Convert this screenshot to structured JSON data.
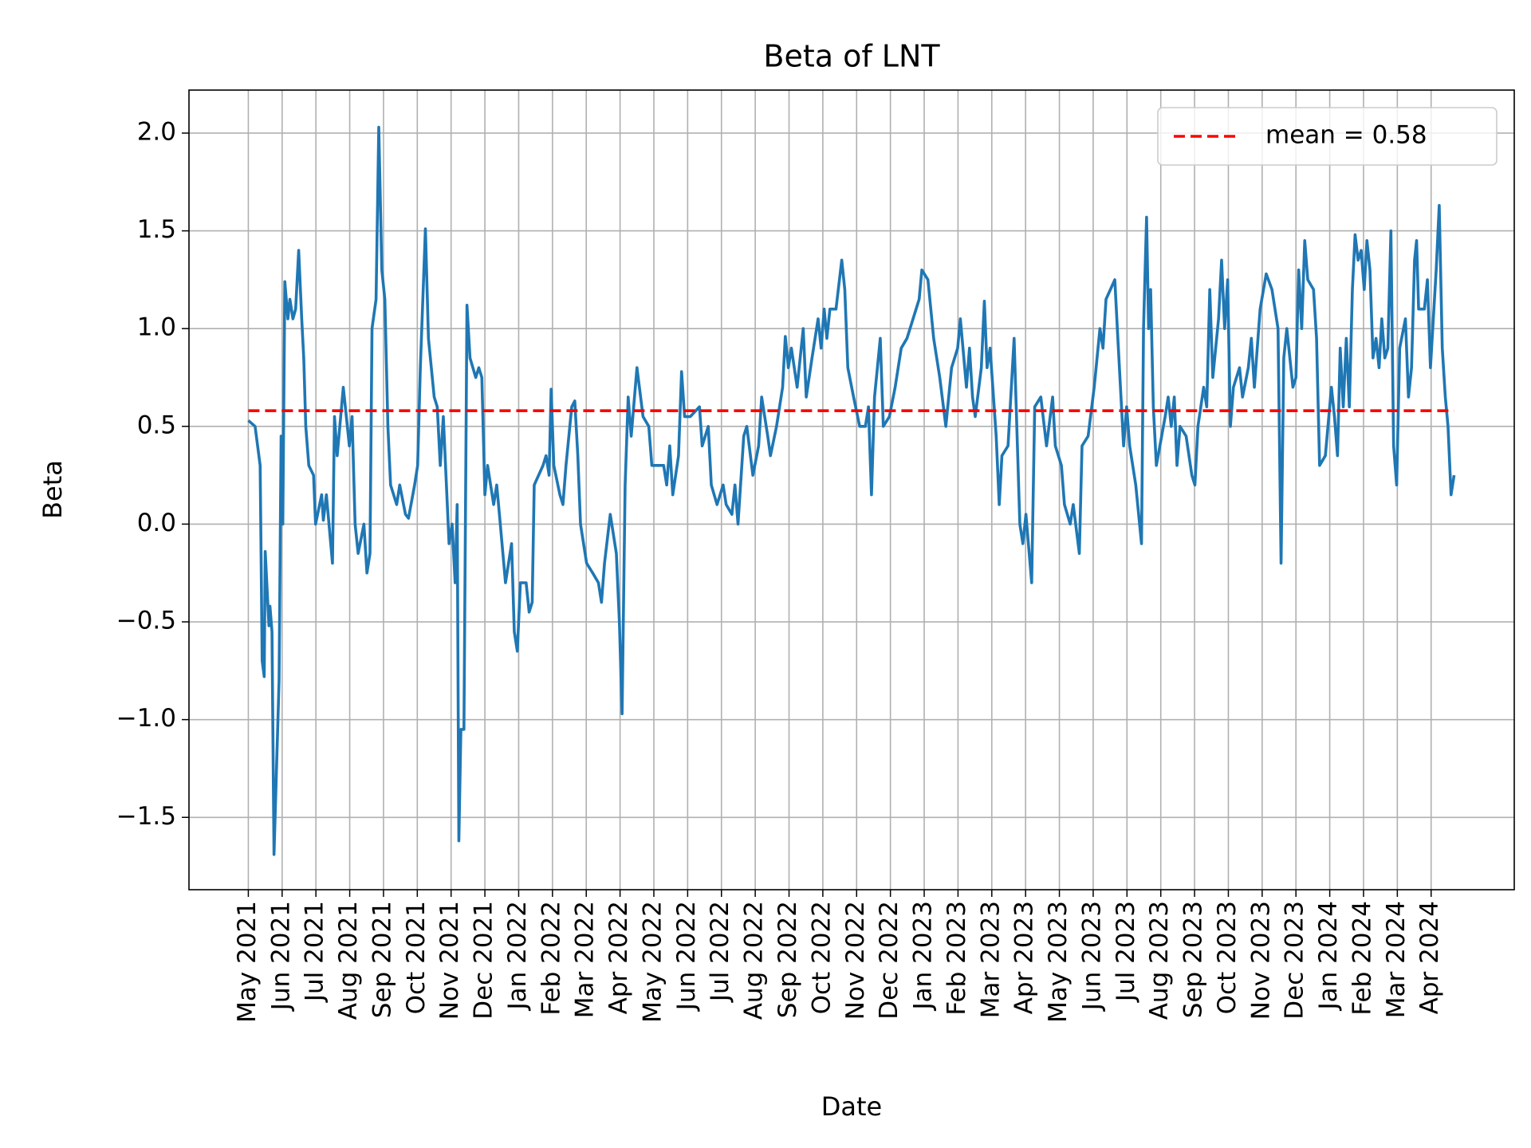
{
  "chart_data": {
    "type": "line",
    "title": "Beta of LNT",
    "x_label": "Date",
    "y_label": "Beta",
    "x": [
      0,
      0.2,
      0.35,
      0.41,
      0.47,
      0.5,
      0.61,
      0.64,
      0.7,
      0.76,
      0.91,
      0.97,
      1.02,
      1.08,
      1.17,
      1.23,
      1.32,
      1.4,
      1.49,
      1.58,
      1.64,
      1.7,
      1.79,
      1.93,
      1.99,
      2.17,
      2.22,
      2.31,
      2.49,
      2.55,
      2.63,
      2.81,
      2.99,
      3.07,
      3.16,
      3.25,
      3.42,
      3.51,
      3.6,
      3.66,
      3.78,
      3.86,
      3.95,
      4.04,
      4.13,
      4.21,
      4.39,
      4.48,
      4.65,
      4.74,
      4.92,
      5.01,
      5.09,
      5.24,
      5.33,
      5.5,
      5.59,
      5.68,
      5.77,
      5.94,
      6.03,
      6.12,
      6.18,
      6.23,
      6.29,
      6.38,
      6.47,
      6.56,
      6.73,
      6.82,
      6.91,
      7.0,
      7.08,
      7.26,
      7.35,
      7.43,
      7.61,
      7.79,
      7.87,
      7.96,
      8.05,
      8.22,
      8.31,
      8.4,
      8.46,
      8.72,
      8.81,
      8.9,
      8.96,
      9.04,
      9.22,
      9.31,
      9.4,
      9.57,
      9.66,
      9.75,
      9.83,
      10.01,
      10.19,
      10.36,
      10.45,
      10.54,
      10.71,
      10.89,
      10.98,
      11.06,
      11.15,
      11.24,
      11.33,
      11.5,
      11.68,
      11.85,
      11.94,
      12.12,
      12.29,
      12.38,
      12.47,
      12.56,
      12.73,
      12.82,
      12.91,
      13.08,
      13.35,
      13.43,
      13.61,
      13.7,
      13.87,
      14.05,
      14.14,
      14.31,
      14.4,
      14.49,
      14.66,
      14.75,
      14.93,
      15.1,
      15.19,
      15.37,
      15.45,
      15.63,
      15.81,
      15.89,
      15.98,
      16.07,
      16.24,
      16.42,
      16.51,
      16.68,
      16.86,
      16.95,
      17.04,
      17.12,
      17.21,
      17.39,
      17.56,
      17.65,
      17.74,
      17.91,
      18.09,
      18.26,
      18.35,
      18.44,
      18.53,
      18.7,
      18.79,
      18.97,
      19.14,
      19.32,
      19.49,
      19.67,
      19.85,
      19.93,
      20.11,
      20.28,
      20.46,
      20.64,
      20.81,
      20.99,
      21.07,
      21.25,
      21.34,
      21.43,
      21.51,
      21.69,
      21.78,
      21.86,
      21.95,
      22.13,
      22.22,
      22.3,
      22.48,
      22.66,
      22.74,
      22.83,
      22.92,
      23.01,
      23.18,
      23.27,
      23.45,
      23.62,
      23.8,
      23.88,
      24.06,
      24.15,
      24.32,
      24.41,
      24.59,
      24.67,
      24.85,
      25.03,
      25.2,
      25.29,
      25.38,
      25.64,
      25.73,
      25.9,
      25.99,
      26.08,
      26.26,
      26.43,
      26.49,
      26.58,
      26.64,
      26.7,
      26.78,
      26.87,
      27.13,
      27.22,
      27.31,
      27.4,
      27.48,
      27.57,
      27.75,
      27.92,
      28.01,
      28.1,
      28.27,
      28.36,
      28.45,
      28.54,
      28.71,
      28.8,
      28.89,
      28.98,
      29.06,
      29.15,
      29.33,
      29.42,
      29.59,
      29.68,
      29.77,
      29.94,
      30.12,
      30.29,
      30.47,
      30.56,
      30.64,
      30.73,
      30.91,
      31.0,
      31.08,
      31.17,
      31.26,
      31.35,
      31.52,
      31.61,
      31.7,
      31.87,
      32.05,
      32.14,
      32.23,
      32.31,
      32.4,
      32.49,
      32.58,
      32.67,
      32.75,
      32.84,
      32.93,
      33.02,
      33.1,
      33.19,
      33.28,
      33.37,
      33.46,
      33.54,
      33.63,
      33.72,
      33.81,
      33.89,
      33.98,
      34.07,
      34.24,
      34.33,
      34.42,
      34.51,
      34.57,
      34.63,
      34.8,
      34.89,
      34.98,
      35.15,
      35.24,
      35.33,
      35.42,
      35.5,
      35.59,
      35.68
    ],
    "series": [
      {
        "color": "#1f77b4",
        "values": [
          0.53,
          0.5,
          0.3,
          -0.7,
          -0.78,
          -0.14,
          -0.52,
          -0.42,
          -0.55,
          -1.69,
          -0.8,
          0.45,
          0.0,
          1.24,
          1.05,
          1.15,
          1.05,
          1.1,
          1.4,
          1.05,
          0.85,
          0.5,
          0.3,
          0.25,
          0.0,
          0.15,
          0.02,
          0.15,
          -0.2,
          0.55,
          0.35,
          0.7,
          0.4,
          0.55,
          0.0,
          -0.15,
          0.0,
          -0.25,
          -0.15,
          1.0,
          1.15,
          2.03,
          1.3,
          1.15,
          0.5,
          0.2,
          0.1,
          0.2,
          0.05,
          0.03,
          0.2,
          0.3,
          0.8,
          1.51,
          0.95,
          0.65,
          0.6,
          0.3,
          0.55,
          -0.1,
          0.0,
          -0.3,
          0.1,
          -1.62,
          -1.05,
          -1.05,
          1.12,
          0.85,
          0.75,
          0.8,
          0.75,
          0.15,
          0.3,
          0.1,
          0.2,
          0.05,
          -0.3,
          -0.1,
          -0.55,
          -0.65,
          -0.3,
          -0.3,
          -0.45,
          -0.4,
          0.2,
          0.3,
          0.35,
          0.25,
          0.69,
          0.3,
          0.15,
          0.1,
          0.3,
          0.6,
          0.63,
          0.35,
          0.0,
          -0.2,
          -0.25,
          -0.3,
          -0.4,
          -0.2,
          0.05,
          -0.15,
          -0.5,
          -0.97,
          0.2,
          0.65,
          0.45,
          0.8,
          0.55,
          0.5,
          0.3,
          0.3,
          0.3,
          0.2,
          0.4,
          0.15,
          0.35,
          0.78,
          0.55,
          0.55,
          0.6,
          0.4,
          0.5,
          0.2,
          0.1,
          0.2,
          0.1,
          0.05,
          0.2,
          0.0,
          0.45,
          0.5,
          0.25,
          0.4,
          0.65,
          0.45,
          0.35,
          0.5,
          0.7,
          0.96,
          0.8,
          0.9,
          0.7,
          1.0,
          0.65,
          0.85,
          1.05,
          0.9,
          1.1,
          0.95,
          1.1,
          1.1,
          1.35,
          1.2,
          0.8,
          0.65,
          0.5,
          0.5,
          0.6,
          0.15,
          0.65,
          0.95,
          0.5,
          0.55,
          0.7,
          0.9,
          0.95,
          1.05,
          1.15,
          1.3,
          1.25,
          0.95,
          0.75,
          0.5,
          0.8,
          0.9,
          1.05,
          0.7,
          0.9,
          0.65,
          0.55,
          0.8,
          1.14,
          0.8,
          0.9,
          0.45,
          0.1,
          0.35,
          0.4,
          0.95,
          0.5,
          0.0,
          -0.1,
          0.05,
          -0.3,
          0.6,
          0.65,
          0.4,
          0.65,
          0.4,
          0.3,
          0.1,
          0.0,
          0.1,
          -0.15,
          0.4,
          0.45,
          0.7,
          1.0,
          0.9,
          1.15,
          1.25,
          0.95,
          0.4,
          0.6,
          0.4,
          0.2,
          -0.1,
          1.0,
          1.57,
          1.0,
          1.2,
          0.6,
          0.3,
          0.55,
          0.65,
          0.5,
          0.65,
          0.3,
          0.5,
          0.45,
          0.25,
          0.2,
          0.5,
          0.7,
          0.6,
          1.2,
          0.75,
          1.05,
          1.35,
          1.0,
          1.25,
          0.5,
          0.7,
          0.8,
          0.65,
          0.8,
          0.95,
          0.7,
          1.1,
          1.28,
          1.2,
          1.0,
          -0.2,
          0.85,
          1.0,
          0.7,
          0.75,
          1.3,
          1.0,
          1.45,
          1.25,
          1.2,
          0.95,
          0.3,
          0.35,
          0.7,
          0.55,
          0.35,
          0.9,
          0.6,
          0.95,
          0.6,
          1.2,
          1.48,
          1.35,
          1.4,
          1.2,
          1.45,
          1.3,
          0.85,
          0.95,
          0.8,
          1.05,
          0.85,
          0.9,
          1.5,
          0.4,
          0.2,
          0.9,
          1.05,
          0.65,
          0.8,
          1.35,
          1.45,
          1.1,
          1.1,
          1.25,
          0.8,
          1.3,
          1.63,
          0.9,
          0.65,
          0.5,
          0.15,
          0.25
        ]
      }
    ],
    "hlines": [
      {
        "label": "mean = 0.58",
        "value": 0.58,
        "color": "#ff0000",
        "linestyle": "dashed"
      }
    ],
    "legend": "upper right",
    "grid": true,
    "xlim": [
      -1.756,
      37.46
    ],
    "ylim": [
      -1.87,
      2.22
    ],
    "xticks": [
      {
        "value": 0,
        "label": "May 2021"
      },
      {
        "value": 1,
        "label": "Jun 2021"
      },
      {
        "value": 2,
        "label": "Jul 2021"
      },
      {
        "value": 3,
        "label": "Aug 2021"
      },
      {
        "value": 4,
        "label": "Sep 2021"
      },
      {
        "value": 5,
        "label": "Oct 2021"
      },
      {
        "value": 6,
        "label": "Nov 2021"
      },
      {
        "value": 7,
        "label": "Dec 2021"
      },
      {
        "value": 8,
        "label": "Jan 2022"
      },
      {
        "value": 9,
        "label": "Feb 2022"
      },
      {
        "value": 10,
        "label": "Mar 2022"
      },
      {
        "value": 11,
        "label": "Apr 2022"
      },
      {
        "value": 12,
        "label": "May 2022"
      },
      {
        "value": 13,
        "label": "Jun 2022"
      },
      {
        "value": 14,
        "label": "Jul 2022"
      },
      {
        "value": 15,
        "label": "Aug 2022"
      },
      {
        "value": 16,
        "label": "Sep 2022"
      },
      {
        "value": 17,
        "label": "Oct 2022"
      },
      {
        "value": 18,
        "label": "Nov 2022"
      },
      {
        "value": 19,
        "label": "Dec 2022"
      },
      {
        "value": 20,
        "label": "Jan 2023"
      },
      {
        "value": 21,
        "label": "Feb 2023"
      },
      {
        "value": 22,
        "label": "Mar 2023"
      },
      {
        "value": 23,
        "label": "Apr 2023"
      },
      {
        "value": 24,
        "label": "May 2023"
      },
      {
        "value": 25,
        "label": "Jun 2023"
      },
      {
        "value": 26,
        "label": "Jul 2023"
      },
      {
        "value": 27,
        "label": "Aug 2023"
      },
      {
        "value": 28,
        "label": "Sep 2023"
      },
      {
        "value": 29,
        "label": "Oct 2023"
      },
      {
        "value": 30,
        "label": "Nov 2023"
      },
      {
        "value": 31,
        "label": "Dec 2023"
      },
      {
        "value": 32,
        "label": "Jan 2024"
      },
      {
        "value": 33,
        "label": "Feb 2024"
      },
      {
        "value": 34,
        "label": "Mar 2024"
      },
      {
        "value": 35,
        "label": "Apr 2024"
      }
    ],
    "yticks": [
      {
        "value": -1.5,
        "label": "−1.5"
      },
      {
        "value": -1.0,
        "label": "−1.0"
      },
      {
        "value": -0.5,
        "label": "−0.5"
      },
      {
        "value": 0,
        "label": "0.0"
      },
      0.5,
      {
        "value": 1.0,
        "label": "1.0"
      },
      1.5,
      {
        "value": 2.0,
        "label": "2.0"
      }
    ]
  }
}
